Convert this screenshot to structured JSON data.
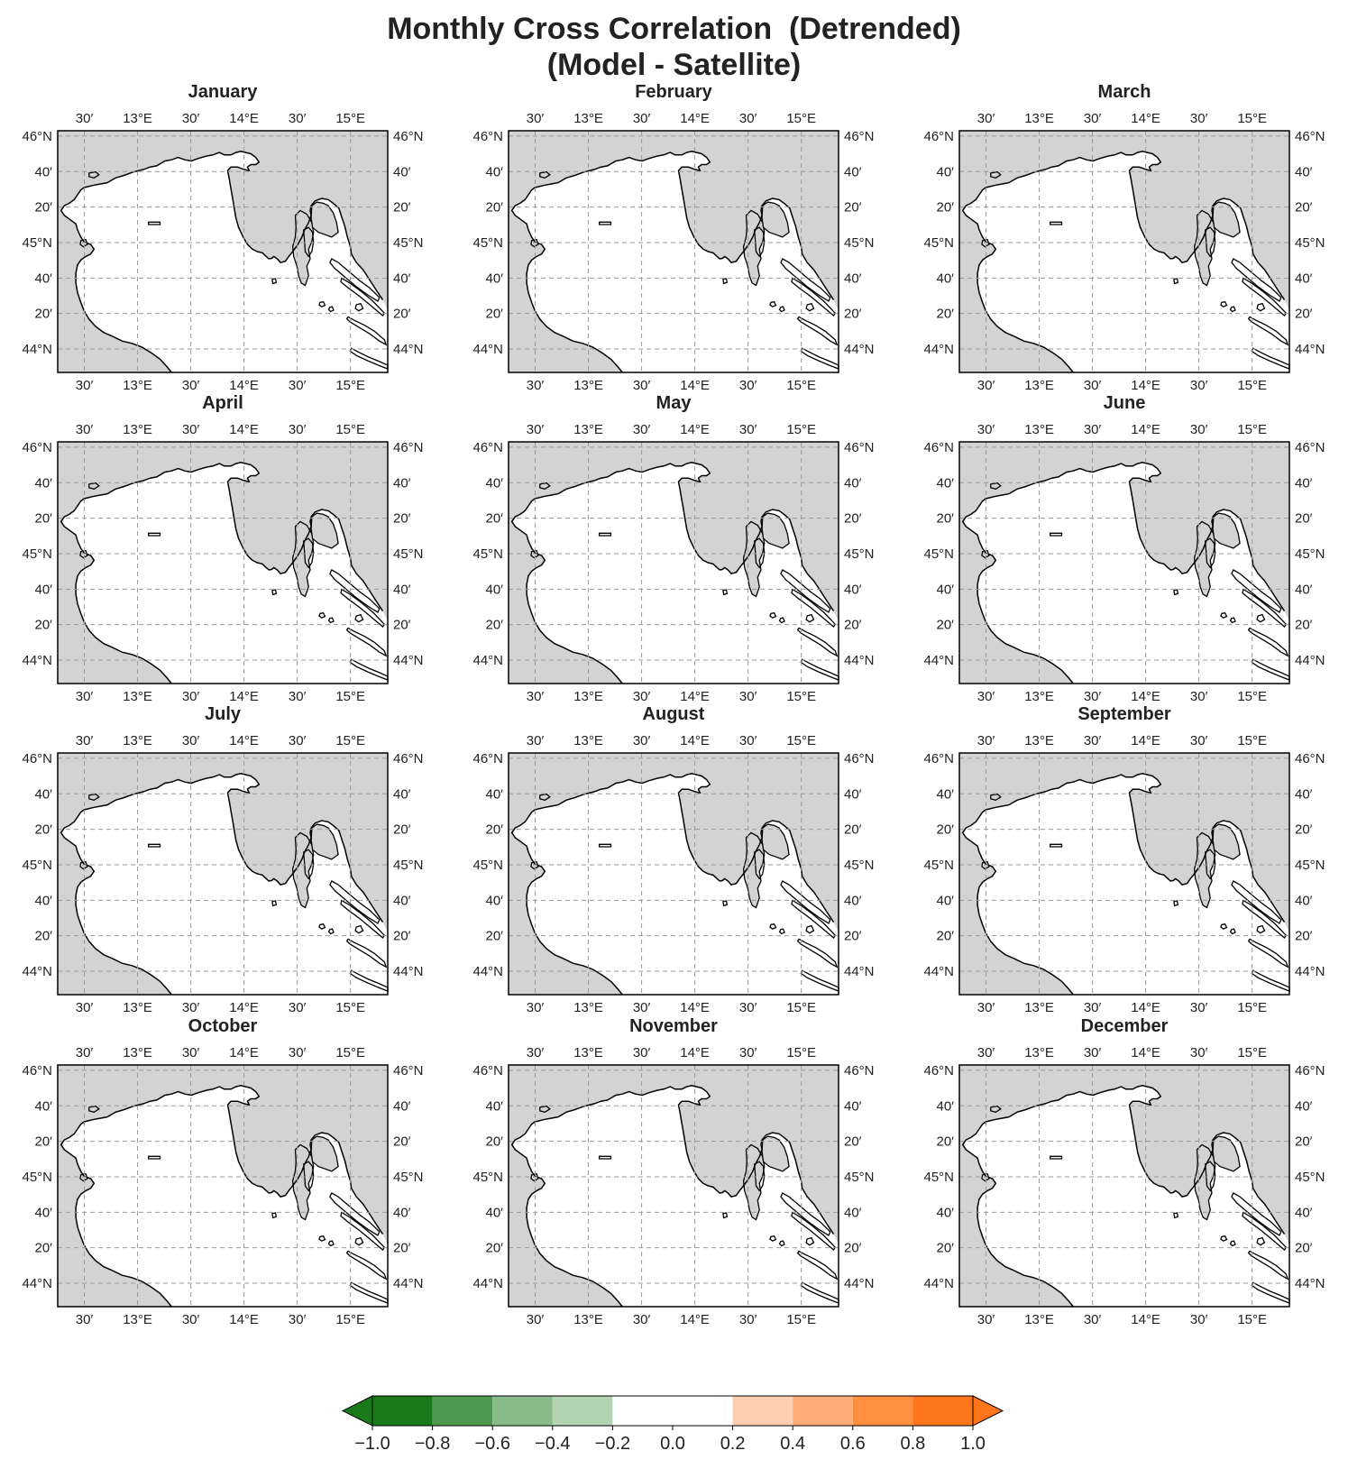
{
  "title": {
    "line1": "Monthly Cross Correlation  (Detrended)",
    "line2": "(Model - Satellite)"
  },
  "colors": {
    "land": "#d3d3d3",
    "sea": "#ffffff",
    "coast": "#000000",
    "grid": "#999999"
  },
  "map_extent": {
    "lon": [
      12.25,
      15.35
    ],
    "lat": [
      43.78,
      46.05
    ]
  },
  "lon_ticks": [
    {
      "value": 12.5,
      "label": "30′"
    },
    {
      "value": 13.0,
      "label": "13°E"
    },
    {
      "value": 13.5,
      "label": "30′"
    },
    {
      "value": 14.0,
      "label": "14°E"
    },
    {
      "value": 14.5,
      "label": "30′"
    },
    {
      "value": 15.0,
      "label": "15°E"
    }
  ],
  "lat_ticks": [
    {
      "value": 46.0,
      "label": "46°N"
    },
    {
      "value": 45.6667,
      "label": "40′"
    },
    {
      "value": 45.3333,
      "label": "20′"
    },
    {
      "value": 45.0,
      "label": "45°N"
    },
    {
      "value": 44.6667,
      "label": "40′"
    },
    {
      "value": 44.3333,
      "label": "20′"
    },
    {
      "value": 44.0,
      "label": "44°N"
    }
  ],
  "panels": [
    "January",
    "February",
    "March",
    "April",
    "May",
    "June",
    "July",
    "August",
    "September",
    "October",
    "November",
    "December"
  ],
  "colorbar": {
    "ticks": [
      "−1.0",
      "−0.8",
      "−0.6",
      "−0.4",
      "−0.2",
      "0.0",
      "0.2",
      "0.4",
      "0.6",
      "0.8",
      "1.0"
    ],
    "bins": [
      {
        "from": -1.0,
        "to": -0.8,
        "color": "#1a7a1a"
      },
      {
        "from": -0.8,
        "to": -0.6,
        "color": "#4e994e"
      },
      {
        "from": -0.6,
        "to": -0.4,
        "color": "#88bb88"
      },
      {
        "from": -0.4,
        "to": -0.2,
        "color": "#b3d4b3"
      },
      {
        "from": -0.2,
        "to": 0.2,
        "color": "#ffffff"
      },
      {
        "from": 0.2,
        "to": 0.4,
        "color": "#ffcdb0"
      },
      {
        "from": 0.4,
        "to": 0.6,
        "color": "#ffad78"
      },
      {
        "from": 0.6,
        "to": 0.8,
        "color": "#ff9040"
      },
      {
        "from": 0.8,
        "to": 1.0,
        "color": "#ff761a"
      }
    ],
    "extend_low_color": "#1a7a1a",
    "extend_high_color": "#ff761a"
  }
}
